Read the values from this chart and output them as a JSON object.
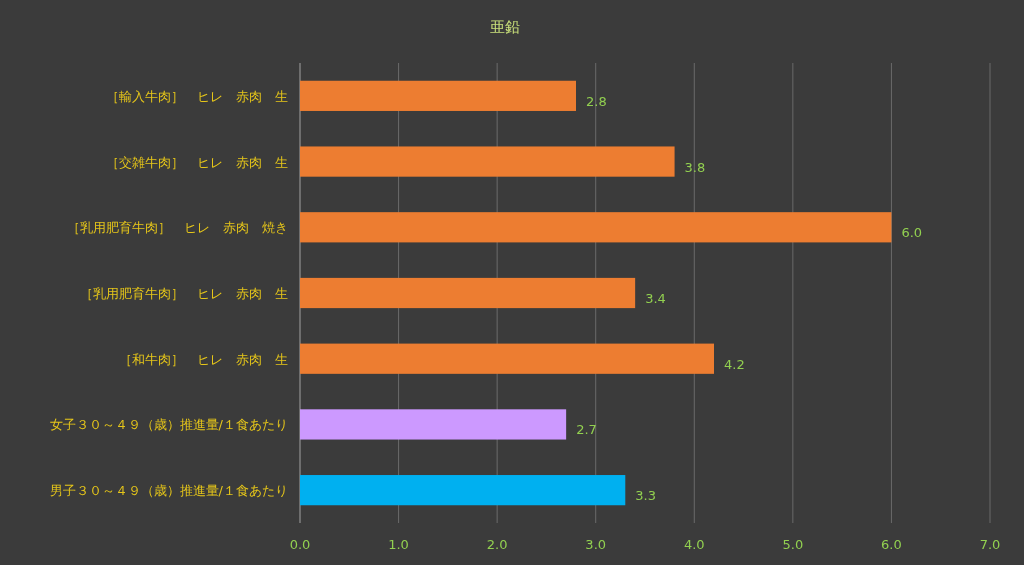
{
  "chart_data": {
    "type": "bar",
    "orientation": "horizontal",
    "title": "亜鉛",
    "categories": [
      "［輸入牛肉］　ヒレ　赤肉　生",
      "［交雑牛肉］　ヒレ　赤肉　生",
      "［乳用肥育牛肉］　ヒレ　赤肉　焼き",
      "［乳用肥育牛肉］　ヒレ　赤肉　生",
      "［和牛肉］　ヒレ　赤肉　生",
      "女子３０～４９（歳）推進量/１食あたり",
      "男子３０～４９（歳）推進量/１食あたり"
    ],
    "values": [
      2.8,
      3.8,
      6.0,
      3.4,
      4.2,
      2.7,
      3.3
    ],
    "value_labels": [
      "2.8",
      "3.8",
      "6.0",
      "3.4",
      "4.2",
      "2.7",
      "3.3"
    ],
    "colors": [
      "#ed7d31",
      "#ed7d31",
      "#ed7d31",
      "#ed7d31",
      "#ed7d31",
      "#cc99ff",
      "#00b0f0"
    ],
    "xlim": [
      0,
      7
    ],
    "xticks": [
      {
        "value": 0,
        "label": "0.0"
      },
      {
        "value": 1,
        "label": "1.0"
      },
      {
        "value": 2,
        "label": "2.0"
      },
      {
        "value": 3,
        "label": "3.0"
      },
      {
        "value": 4,
        "label": "4.0"
      },
      {
        "value": 5,
        "label": "5.0"
      },
      {
        "value": 6,
        "label": "6.0"
      },
      {
        "value": 7,
        "label": "7.0"
      }
    ],
    "grid": "x"
  }
}
